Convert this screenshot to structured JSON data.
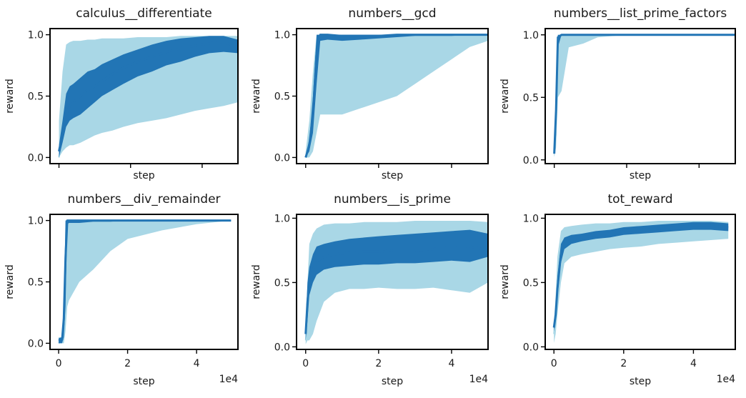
{
  "colors": {
    "raw": "#a9d7e6",
    "smooth": "#2275b5"
  },
  "chart_data": [
    {
      "type": "line",
      "title": "calculus__differentiate",
      "xlabel": "step",
      "ylabel": "reward",
      "xlim": [
        -2500,
        50000
      ],
      "ylim": [
        -0.05,
        1.05
      ],
      "yticks": [
        0.0,
        0.5,
        1.0
      ],
      "ytick_labels": [
        "0.0",
        "0.5",
        "1.0"
      ],
      "xticks": [
        0,
        20000,
        40000
      ],
      "xtick_labels": [
        "",
        "",
        ""
      ],
      "x_offset_label": "",
      "grid": false,
      "series": [
        {
          "role": "raw",
          "x": [
            0,
            1000,
            2000,
            3000,
            4000,
            6000,
            8000,
            10000,
            12000,
            15000,
            18000,
            22000,
            26000,
            30000,
            34000,
            38000,
            42000,
            46000,
            50000
          ],
          "values": [
            0.0,
            0.18,
            0.3,
            0.32,
            0.38,
            0.42,
            0.48,
            0.52,
            0.58,
            0.6,
            0.66,
            0.7,
            0.74,
            0.78,
            0.8,
            0.82,
            0.84,
            0.86,
            0.87
          ],
          "min": [
            0.0,
            0.05,
            0.08,
            0.1,
            0.1,
            0.12,
            0.15,
            0.18,
            0.2,
            0.22,
            0.25,
            0.28,
            0.3,
            0.32,
            0.35,
            0.38,
            0.4,
            0.42,
            0.45
          ],
          "max": [
            0.3,
            0.7,
            0.92,
            0.94,
            0.95,
            0.95,
            0.96,
            0.96,
            0.97,
            0.97,
            0.97,
            0.98,
            0.98,
            0.98,
            0.99,
            0.99,
            0.99,
            0.99,
            0.99
          ]
        },
        {
          "role": "smooth",
          "x": [
            0,
            1000,
            2000,
            3000,
            4000,
            6000,
            8000,
            10000,
            12000,
            15000,
            18000,
            22000,
            26000,
            30000,
            34000,
            38000,
            42000,
            46000,
            50000
          ],
          "values": [
            0.05,
            0.2,
            0.35,
            0.42,
            0.45,
            0.5,
            0.55,
            0.58,
            0.62,
            0.68,
            0.73,
            0.78,
            0.82,
            0.86,
            0.89,
            0.91,
            0.93,
            0.94,
            0.9
          ],
          "min": [
            0.0,
            0.12,
            0.25,
            0.3,
            0.32,
            0.35,
            0.4,
            0.45,
            0.5,
            0.55,
            0.6,
            0.66,
            0.7,
            0.75,
            0.78,
            0.82,
            0.85,
            0.86,
            0.85
          ],
          "max": [
            0.1,
            0.3,
            0.52,
            0.58,
            0.6,
            0.65,
            0.7,
            0.72,
            0.76,
            0.8,
            0.84,
            0.88,
            0.92,
            0.95,
            0.97,
            0.98,
            0.99,
            0.99,
            0.96
          ]
        }
      ]
    },
    {
      "type": "line",
      "title": "numbers__gcd",
      "xlabel": "step",
      "ylabel": "reward",
      "xlim": [
        -2500,
        50000
      ],
      "ylim": [
        -0.05,
        1.05
      ],
      "yticks": [
        0.0,
        0.5,
        1.0
      ],
      "ytick_labels": [
        "0.0",
        "0.5",
        "1.0"
      ],
      "xticks": [
        0,
        20000,
        40000
      ],
      "xtick_labels": [
        "",
        "",
        ""
      ],
      "x_offset_label": "",
      "grid": false,
      "series": [
        {
          "role": "raw",
          "x": [
            0,
            1000,
            2000,
            3000,
            4000,
            6000,
            10000,
            15000,
            20000,
            25000,
            30000,
            35000,
            40000,
            45000,
            50000
          ],
          "values": [
            0.0,
            0.05,
            0.2,
            0.6,
            0.95,
            0.97,
            0.97,
            0.98,
            0.98,
            0.98,
            0.99,
            0.99,
            0.99,
            0.99,
            1.0
          ],
          "min": [
            0.0,
            0.0,
            0.05,
            0.2,
            0.35,
            0.35,
            0.35,
            0.4,
            0.45,
            0.5,
            0.6,
            0.7,
            0.8,
            0.9,
            0.95
          ],
          "max": [
            0.05,
            0.3,
            0.7,
            1.0,
            1.0,
            1.0,
            1.0,
            1.0,
            1.0,
            1.0,
            1.0,
            1.0,
            1.0,
            1.0,
            1.0
          ]
        },
        {
          "role": "smooth",
          "x": [
            0,
            1000,
            2000,
            3000,
            4000,
            6000,
            10000,
            15000,
            20000,
            25000,
            30000,
            35000,
            40000,
            45000,
            50000
          ],
          "values": [
            0.0,
            0.1,
            0.35,
            0.85,
            1.0,
            1.0,
            0.99,
            0.99,
            0.99,
            1.0,
            1.0,
            1.0,
            1.0,
            1.0,
            1.0
          ],
          "min": [
            0.0,
            0.05,
            0.2,
            0.6,
            0.95,
            0.96,
            0.95,
            0.96,
            0.97,
            0.98,
            0.99,
            0.99,
            0.99,
            1.0,
            1.0
          ],
          "max": [
            0.02,
            0.15,
            0.5,
            1.0,
            1.0,
            1.0,
            1.0,
            1.0,
            1.0,
            1.0,
            1.0,
            1.0,
            1.0,
            1.0,
            1.0
          ]
        }
      ]
    },
    {
      "type": "line",
      "title": "numbers__list_prime_factors",
      "xlabel": "step",
      "ylabel": "reward",
      "xlim": [
        -2500,
        50000
      ],
      "ylim": [
        -0.03,
        1.05
      ],
      "yticks": [
        0.0,
        0.5,
        1.0
      ],
      "ytick_labels": [
        "0.0",
        "0.5",
        "1.0"
      ],
      "xticks": [
        0,
        20000,
        40000
      ],
      "xtick_labels": [
        "",
        "",
        ""
      ],
      "x_offset_label": "",
      "grid": false,
      "series": [
        {
          "role": "raw",
          "x": [
            0,
            500,
            1000,
            2000,
            4000,
            8000,
            12000,
            20000,
            30000,
            40000,
            50000
          ],
          "values": [
            0.05,
            0.3,
            0.9,
            0.98,
            0.99,
            0.99,
            1.0,
            1.0,
            1.0,
            1.0,
            1.0
          ],
          "min": [
            0.02,
            0.1,
            0.5,
            0.55,
            0.9,
            0.93,
            0.98,
            1.0,
            1.0,
            1.0,
            1.0
          ],
          "max": [
            0.1,
            0.6,
            1.0,
            1.0,
            1.0,
            1.0,
            1.0,
            1.0,
            1.0,
            1.0,
            1.0
          ]
        },
        {
          "role": "smooth",
          "x": [
            0,
            500,
            1000,
            2000,
            4000,
            8000,
            12000,
            20000,
            30000,
            40000,
            50000
          ],
          "values": [
            0.05,
            0.4,
            0.98,
            1.0,
            1.0,
            1.0,
            1.0,
            1.0,
            1.0,
            1.0,
            1.0
          ],
          "min": [
            0.03,
            0.2,
            0.9,
            1.0,
            1.0,
            1.0,
            1.0,
            1.0,
            1.0,
            1.0,
            1.0
          ],
          "max": [
            0.08,
            0.6,
            1.0,
            1.0,
            1.0,
            1.0,
            1.0,
            1.0,
            1.0,
            1.0,
            1.0
          ]
        }
      ]
    },
    {
      "type": "line",
      "title": "numbers__div_remainder",
      "xlabel": "step",
      "ylabel": "reward",
      "xlim": [
        -2500,
        52000
      ],
      "ylim": [
        -0.05,
        1.05
      ],
      "yticks": [
        0.0,
        0.5,
        1.0
      ],
      "ytick_labels": [
        "0.0",
        "0.5",
        "1.0"
      ],
      "xticks": [
        0,
        20000,
        40000
      ],
      "xtick_labels": [
        "0",
        "2",
        "4"
      ],
      "x_offset_label": "1e4",
      "grid": false,
      "series": [
        {
          "role": "raw",
          "x": [
            0,
            1000,
            1500,
            2000,
            2500,
            3000,
            4000,
            6000,
            10000,
            15000,
            20000,
            30000,
            40000,
            50000
          ],
          "values": [
            0.0,
            0.02,
            0.1,
            0.5,
            0.85,
            0.97,
            0.97,
            0.97,
            0.98,
            0.98,
            0.99,
            0.99,
            1.0,
            1.0
          ],
          "min": [
            0.0,
            0.0,
            0.0,
            0.1,
            0.3,
            0.35,
            0.4,
            0.5,
            0.6,
            0.75,
            0.85,
            0.92,
            0.97,
            1.0
          ],
          "max": [
            0.05,
            0.05,
            0.4,
            1.0,
            1.0,
            1.0,
            1.0,
            1.0,
            1.0,
            1.0,
            1.0,
            1.0,
            1.0,
            1.0
          ]
        },
        {
          "role": "smooth",
          "x": [
            0,
            1000,
            1500,
            2000,
            2500,
            3000,
            4000,
            6000,
            10000,
            15000,
            20000,
            30000,
            40000,
            50000
          ],
          "values": [
            0.02,
            0.03,
            0.2,
            0.7,
            1.0,
            1.0,
            1.0,
            1.0,
            1.0,
            1.0,
            1.0,
            1.0,
            1.0,
            1.0
          ],
          "min": [
            0.0,
            0.0,
            0.05,
            0.3,
            0.97,
            0.98,
            0.98,
            0.98,
            0.99,
            0.99,
            1.0,
            1.0,
            1.0,
            1.0
          ],
          "max": [
            0.04,
            0.05,
            0.35,
            1.0,
            1.0,
            1.0,
            1.0,
            1.0,
            1.0,
            1.0,
            1.0,
            1.0,
            1.0,
            1.0
          ]
        }
      ]
    },
    {
      "type": "line",
      "title": "numbers__is_prime",
      "xlabel": "step",
      "ylabel": "reward",
      "xlim": [
        -2500,
        50000
      ],
      "ylim": [
        -0.02,
        1.03
      ],
      "yticks": [
        0.0,
        0.5,
        1.0
      ],
      "ytick_labels": [
        "0.0",
        "0.5",
        "1.0"
      ],
      "xticks": [
        0,
        20000,
        40000
      ],
      "xtick_labels": [
        "0",
        "2",
        "4"
      ],
      "x_offset_label": "1e4",
      "grid": false,
      "series": [
        {
          "role": "raw",
          "x": [
            0,
            500,
            1000,
            2000,
            3000,
            5000,
            8000,
            12000,
            16000,
            20000,
            25000,
            30000,
            35000,
            40000,
            45000,
            50000
          ],
          "values": [
            0.05,
            0.2,
            0.4,
            0.55,
            0.62,
            0.66,
            0.7,
            0.72,
            0.73,
            0.74,
            0.74,
            0.75,
            0.75,
            0.76,
            0.76,
            0.75
          ],
          "min": [
            0.02,
            0.05,
            0.05,
            0.1,
            0.2,
            0.35,
            0.42,
            0.45,
            0.45,
            0.46,
            0.45,
            0.45,
            0.46,
            0.44,
            0.42,
            0.5
          ],
          "max": [
            0.1,
            0.5,
            0.8,
            0.88,
            0.92,
            0.95,
            0.96,
            0.96,
            0.97,
            0.97,
            0.97,
            0.98,
            0.98,
            0.98,
            0.98,
            0.97
          ]
        },
        {
          "role": "smooth",
          "x": [
            0,
            500,
            1000,
            2000,
            3000,
            5000,
            8000,
            12000,
            16000,
            20000,
            25000,
            30000,
            35000,
            40000,
            45000,
            50000
          ],
          "values": [
            0.1,
            0.35,
            0.5,
            0.6,
            0.66,
            0.7,
            0.72,
            0.73,
            0.74,
            0.74,
            0.75,
            0.75,
            0.76,
            0.77,
            0.78,
            0.75
          ],
          "min": [
            0.05,
            0.2,
            0.4,
            0.5,
            0.56,
            0.6,
            0.62,
            0.63,
            0.64,
            0.64,
            0.65,
            0.65,
            0.66,
            0.67,
            0.66,
            0.7
          ],
          "max": [
            0.2,
            0.5,
            0.62,
            0.72,
            0.78,
            0.8,
            0.82,
            0.84,
            0.85,
            0.86,
            0.87,
            0.88,
            0.89,
            0.9,
            0.91,
            0.88
          ]
        }
      ]
    },
    {
      "type": "line",
      "title": "tot_reward",
      "xlabel": "step",
      "ylabel": "reward",
      "xlim": [
        -2500,
        52000
      ],
      "ylim": [
        -0.02,
        1.03
      ],
      "yticks": [
        0.0,
        0.5,
        1.0
      ],
      "ytick_labels": [
        "0.0",
        "0.5",
        "1.0"
      ],
      "xticks": [
        0,
        20000,
        40000
      ],
      "xtick_labels": [
        "0",
        "2",
        "4"
      ],
      "x_offset_label": "1e4",
      "grid": false,
      "series": [
        {
          "role": "raw",
          "x": [
            0,
            500,
            1000,
            2000,
            3000,
            5000,
            8000,
            12000,
            16000,
            20000,
            25000,
            30000,
            35000,
            40000,
            45000,
            50000
          ],
          "values": [
            0.1,
            0.25,
            0.5,
            0.75,
            0.82,
            0.85,
            0.86,
            0.88,
            0.89,
            0.9,
            0.91,
            0.92,
            0.93,
            0.93,
            0.93,
            0.92
          ],
          "min": [
            0.03,
            0.1,
            0.25,
            0.5,
            0.65,
            0.7,
            0.72,
            0.74,
            0.76,
            0.77,
            0.78,
            0.8,
            0.81,
            0.82,
            0.83,
            0.84
          ],
          "max": [
            0.2,
            0.4,
            0.7,
            0.9,
            0.93,
            0.94,
            0.95,
            0.96,
            0.96,
            0.97,
            0.97,
            0.98,
            0.98,
            0.98,
            0.98,
            0.97
          ]
        },
        {
          "role": "smooth",
          "x": [
            0,
            500,
            1000,
            2000,
            3000,
            5000,
            8000,
            12000,
            16000,
            20000,
            25000,
            30000,
            35000,
            40000,
            45000,
            50000
          ],
          "values": [
            0.15,
            0.25,
            0.45,
            0.72,
            0.8,
            0.83,
            0.85,
            0.87,
            0.88,
            0.9,
            0.91,
            0.92,
            0.93,
            0.94,
            0.94,
            0.93
          ],
          "min": [
            0.12,
            0.2,
            0.38,
            0.65,
            0.76,
            0.8,
            0.82,
            0.84,
            0.85,
            0.87,
            0.88,
            0.89,
            0.9,
            0.91,
            0.91,
            0.9
          ],
          "max": [
            0.2,
            0.3,
            0.55,
            0.8,
            0.85,
            0.87,
            0.88,
            0.9,
            0.91,
            0.93,
            0.94,
            0.95,
            0.96,
            0.97,
            0.97,
            0.96
          ]
        }
      ]
    }
  ]
}
